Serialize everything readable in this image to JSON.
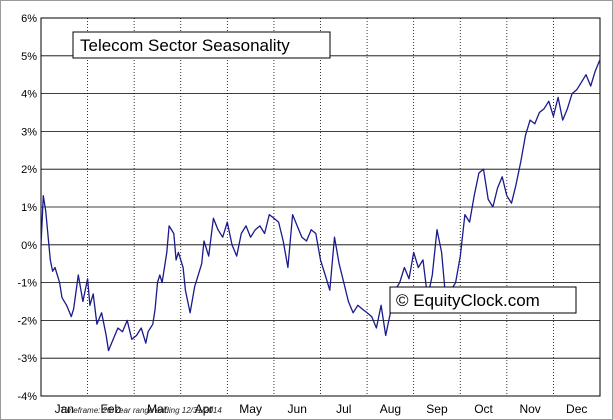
{
  "chart_data": {
    "type": "line",
    "title": "Telecom Sector Seasonality",
    "watermark": "© EquityClock.com",
    "footnote": "Timeframe: 20-Year range ending 12/31/2014",
    "ylim": [
      -4,
      6
    ],
    "y_ticks": [
      "-4%",
      "-3%",
      "-2%",
      "-1%",
      "0%",
      "1%",
      "2%",
      "3%",
      "4%",
      "5%",
      "6%"
    ],
    "categories": [
      "Jan",
      "Feb",
      "Mar",
      "Apr",
      "May",
      "Jun",
      "Jul",
      "Aug",
      "Sep",
      "Oct",
      "Nov",
      "Dec"
    ],
    "grid": true,
    "line_color": "#1a1a8c",
    "series": [
      {
        "x": [
          0.0,
          0.05,
          0.1,
          0.2,
          0.25,
          0.3,
          0.4,
          0.45,
          0.55,
          0.65,
          0.7,
          0.8,
          0.9,
          1.0,
          1.05,
          1.12,
          1.2,
          1.3,
          1.4,
          1.45,
          1.55,
          1.65,
          1.75,
          1.85,
          1.95,
          2.05,
          2.15,
          2.25,
          2.3,
          2.4,
          2.45,
          2.5,
          2.55,
          2.6,
          2.7,
          2.75,
          2.85,
          2.9,
          2.95,
          3.05,
          3.1,
          3.2,
          3.3,
          3.35,
          3.45,
          3.5,
          3.6,
          3.7,
          3.8,
          3.9,
          4.0,
          4.1,
          4.2,
          4.3,
          4.4,
          4.5,
          4.6,
          4.7,
          4.8,
          4.9,
          5.0,
          5.1,
          5.2,
          5.3,
          5.4,
          5.5,
          5.6,
          5.7,
          5.8,
          5.9,
          6.0,
          6.1,
          6.2,
          6.3,
          6.4,
          6.5,
          6.6,
          6.7,
          6.8,
          6.9,
          7.0,
          7.1,
          7.2,
          7.3,
          7.4,
          7.5,
          7.6,
          7.7,
          7.8,
          7.9,
          8.0,
          8.1,
          8.2,
          8.3,
          8.4,
          8.5,
          8.6,
          8.7,
          8.8,
          8.9,
          9.0,
          9.1,
          9.2,
          9.3,
          9.4,
          9.5,
          9.6,
          9.7,
          9.8,
          9.9,
          10.0,
          10.1,
          10.2,
          10.3,
          10.4,
          10.5,
          10.6,
          10.7,
          10.8,
          10.9,
          11.0,
          11.1,
          11.2,
          11.3,
          11.4,
          11.5,
          11.6,
          11.7,
          11.8,
          11.9,
          12.0
        ],
        "y": [
          0.0,
          1.3,
          0.9,
          -0.4,
          -0.7,
          -0.6,
          -1.0,
          -1.4,
          -1.6,
          -1.9,
          -1.7,
          -0.8,
          -1.5,
          -0.9,
          -1.6,
          -1.3,
          -2.1,
          -1.8,
          -2.4,
          -2.8,
          -2.5,
          -2.2,
          -2.3,
          -2.0,
          -2.5,
          -2.4,
          -2.2,
          -2.6,
          -2.3,
          -2.1,
          -1.7,
          -1.0,
          -0.8,
          -1.0,
          -0.2,
          0.5,
          0.3,
          -0.4,
          -0.2,
          -0.6,
          -1.2,
          -1.8,
          -1.1,
          -0.9,
          -0.5,
          0.1,
          -0.3,
          0.7,
          0.4,
          0.2,
          0.6,
          0.0,
          -0.3,
          0.3,
          0.5,
          0.2,
          0.4,
          0.5,
          0.3,
          0.8,
          0.7,
          0.6,
          0.1,
          -0.6,
          0.8,
          0.5,
          0.2,
          0.1,
          0.4,
          0.3,
          -0.4,
          -0.8,
          -1.2,
          0.2,
          -0.5,
          -1.0,
          -1.5,
          -1.8,
          -1.6,
          -1.7,
          -1.8,
          -1.9,
          -2.2,
          -1.6,
          -2.4,
          -1.8,
          -1.2,
          -1.0,
          -0.6,
          -0.9,
          -0.2,
          -0.6,
          -0.4,
          -1.4,
          -0.8,
          0.4,
          -0.2,
          -1.6,
          -1.2,
          -1.0,
          -0.3,
          0.8,
          0.6,
          1.3,
          1.9,
          2.0,
          1.2,
          1.0,
          1.5,
          1.8,
          1.3,
          1.1,
          1.6,
          2.2,
          2.9,
          3.3,
          3.2,
          3.5,
          3.6,
          3.8,
          3.4,
          3.9,
          3.3,
          3.6,
          4.0,
          4.1,
          4.3,
          4.5,
          4.2,
          4.6,
          4.9
        ]
      }
    ]
  }
}
